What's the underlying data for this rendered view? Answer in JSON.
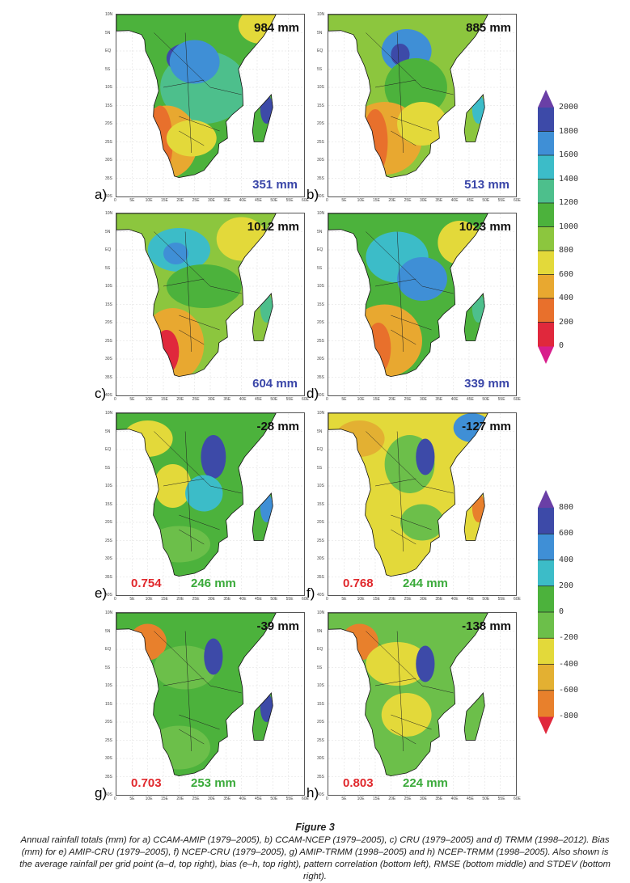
{
  "figure": {
    "title": "Figure 3",
    "caption": "Annual rainfall totals (mm) for a) CCAM-AMIP (1979–2005), b) CCAM-NCEP (1979–2005), c) CRU (1979–2005) and d) TRMM (1998–2012). Bias (mm) for e) AMIP-CRU (1979–2005), f) NCEP-CRU (1979–2005), g) AMIP-TRMM (1998–2005) and h) NCEP-TRMM (1998–2005). Also shown is the average rainfall per grid point (a–d, top right), bias (e–h, top right), pattern correlation (bottom left), RMSE (bottom middle) and STDEV (bottom right)."
  },
  "lat_ticks": [
    "10N",
    "5N",
    "EQ",
    "5S",
    "10S",
    "15S",
    "20S",
    "25S",
    "30S",
    "35S",
    "40S"
  ],
  "lon_ticks": [
    "0",
    "5E",
    "10E",
    "15E",
    "20E",
    "25E",
    "30E",
    "35E",
    "40E",
    "45E",
    "50E",
    "55E",
    "60E"
  ],
  "panels": [
    {
      "letter": "a)",
      "top": "984 mm",
      "bottom_right": "351 mm"
    },
    {
      "letter": "b)",
      "top": "885 mm",
      "bottom_right": "513 mm"
    },
    {
      "letter": "c)",
      "top": "1012 mm",
      "bottom_right": "604 mm"
    },
    {
      "letter": "d)",
      "top": "1023 mm",
      "bottom_right": "339 mm"
    },
    {
      "letter": "e)",
      "top": "-28 mm",
      "corr": "0.754",
      "rmse": "246 mm"
    },
    {
      "letter": "f)",
      "top": "-127 mm",
      "corr": "0.768",
      "rmse": "244 mm"
    },
    {
      "letter": "g)",
      "top": "-39 mm",
      "corr": "0.703",
      "rmse": "253 mm"
    },
    {
      "letter": "h)",
      "top": "-138 mm",
      "corr": "0.803",
      "rmse": "224 mm"
    }
  ],
  "colorbars": [
    {
      "ticks": [
        "2000",
        "1800",
        "1600",
        "1400",
        "1200",
        "1000",
        "800",
        "600",
        "400",
        "200",
        "0"
      ],
      "colors": [
        "#3d4aa8",
        "#3f8fd6",
        "#3cbcc8",
        "#4dbf8c",
        "#4cb23c",
        "#8cc63e",
        "#e3d93a",
        "#e8a830",
        "#e8702c",
        "#e0283c"
      ],
      "top_color": "#6a3fa6",
      "bottom_color": "#d81e8c"
    },
    {
      "ticks": [
        "800",
        "600",
        "400",
        "200",
        "0",
        "-200",
        "-400",
        "-600",
        "-800"
      ],
      "colors": [
        "#3d4aa8",
        "#3f8fd6",
        "#3cbcc8",
        "#4cb23c",
        "#6cbf4a",
        "#e3d93a",
        "#e3b032",
        "#e8802c"
      ],
      "top_color": "#6a3fa6",
      "bottom_color": "#e0283c"
    }
  ]
}
